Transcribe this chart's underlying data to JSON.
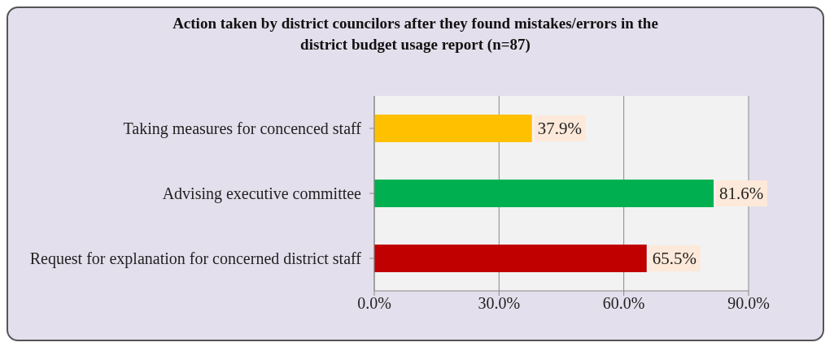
{
  "chart_data": {
    "type": "bar",
    "orientation": "horizontal",
    "title": "Action taken by district councilors after they found mistakes/errors in the district budget usage report (n=87)",
    "categories": [
      "Taking measures for concenced staff",
      "Advising executive committee",
      "Request for explanation for concerned district staff"
    ],
    "values": [
      37.9,
      81.6,
      65.5
    ],
    "colors": [
      "#ffc000",
      "#00b050",
      "#c00000"
    ],
    "value_labels": [
      "37.9%",
      "81.6%",
      "65.5%"
    ],
    "xlim": [
      0,
      90
    ],
    "xticks": [
      {
        "value": 0,
        "label": "0.0%"
      },
      {
        "value": 30,
        "label": "30.0%"
      },
      {
        "value": 60,
        "label": "60.0%"
      },
      {
        "value": 90,
        "label": "90.0%"
      }
    ],
    "grid": "x"
  }
}
